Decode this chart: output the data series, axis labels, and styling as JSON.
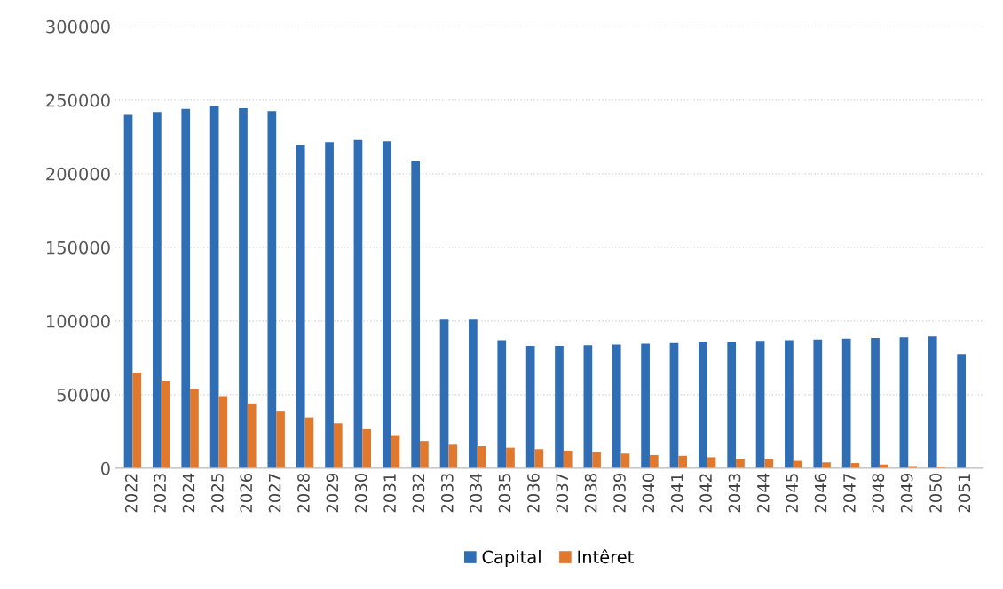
{
  "chart_data": {
    "type": "bar",
    "categories": [
      "2022",
      "2023",
      "2024",
      "2025",
      "2026",
      "2027",
      "2028",
      "2029",
      "2030",
      "2031",
      "2032",
      "2033",
      "2034",
      "2035",
      "2036",
      "2037",
      "2038",
      "2039",
      "2040",
      "2041",
      "2042",
      "2043",
      "2044",
      "2045",
      "2046",
      "2047",
      "2048",
      "2049",
      "2050",
      "2051"
    ],
    "series": [
      {
        "name": "Capital",
        "color": "#2f6db4",
        "values": [
          240000,
          242000,
          244000,
          246000,
          244500,
          242500,
          219500,
          221500,
          223000,
          222000,
          209000,
          101000,
          101000,
          87000,
          83000,
          83000,
          83500,
          84000,
          84500,
          85000,
          85500,
          86000,
          86500,
          87000,
          87500,
          88000,
          88500,
          89000,
          89500,
          77500
        ]
      },
      {
        "name": "Intêret",
        "color": "#e0782e",
        "values": [
          65000,
          59000,
          54000,
          49000,
          44000,
          39000,
          34500,
          30500,
          26500,
          22500,
          18500,
          16000,
          15000,
          14000,
          13000,
          12000,
          11000,
          10000,
          9000,
          8500,
          7500,
          6500,
          6000,
          5000,
          4000,
          3500,
          2500,
          1500,
          1000,
          0
        ]
      }
    ],
    "ylim": [
      0,
      300000
    ],
    "yticks": [
      0,
      50000,
      100000,
      150000,
      200000,
      250000,
      300000
    ],
    "grid": "y",
    "legend": "bottom"
  }
}
